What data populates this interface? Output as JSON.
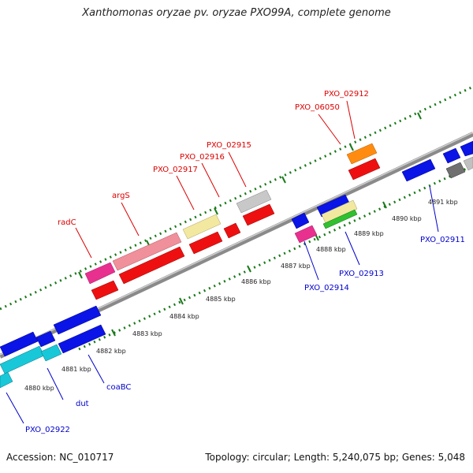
{
  "header": {
    "title": "Xanthomonas oryzae pv. oryzae PXO99A, complete genome"
  },
  "footer": {
    "accession": "Accession: NC_010717",
    "summary": "Topology: circular; Length: 5,240,075 bp; Genes: 5,048"
  },
  "scale": {
    "labels": [
      "4880 kbp",
      "4881 kbp",
      "4882 kbp",
      "4883 kbp",
      "4884 kbp",
      "4885 kbp",
      "4886 kbp",
      "4887 kbp",
      "4888 kbp",
      "4889 kbp",
      "4890 kbp",
      "4891 kbp"
    ]
  },
  "colors": {
    "forward_label": "#dd0000",
    "reverse_label": "#0000cc",
    "backbone": "#8a8a8a"
  },
  "genes": {
    "labels": [
      {
        "text": "radC",
        "color": "#dd0000"
      },
      {
        "text": "argS",
        "color": "#dd0000"
      },
      {
        "text": "PXO_02917",
        "color": "#dd0000"
      },
      {
        "text": "PXO_02916",
        "color": "#dd0000"
      },
      {
        "text": "PXO_02915",
        "color": "#dd0000"
      },
      {
        "text": "PXO_06050",
        "color": "#dd0000"
      },
      {
        "text": "PXO_02912",
        "color": "#dd0000"
      },
      {
        "text": "PXO_02914",
        "color": "#0000cc"
      },
      {
        "text": "PXO_02913",
        "color": "#0000cc"
      },
      {
        "text": "PXO_02911",
        "color": "#0000cc"
      },
      {
        "text": "coaBC",
        "color": "#0000cc"
      },
      {
        "text": "dut",
        "color": "#0000cc"
      },
      {
        "text": "PXO_02922",
        "color": "#0000cc"
      }
    ]
  }
}
